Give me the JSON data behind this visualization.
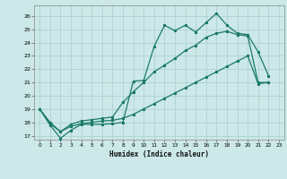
{
  "xlabel": "Humidex (Indice chaleur)",
  "bg_color": "#cce8e8",
  "grid_color": "#aacece",
  "line_color": "#1a7a6a",
  "xlim": [
    -0.5,
    23.5
  ],
  "ylim": [
    16.7,
    26.8
  ],
  "yticks": [
    17,
    18,
    19,
    20,
    21,
    22,
    23,
    24,
    25,
    26
  ],
  "xticks": [
    0,
    1,
    2,
    3,
    4,
    5,
    6,
    7,
    8,
    9,
    10,
    11,
    12,
    13,
    14,
    15,
    16,
    17,
    18,
    19,
    20,
    21,
    22,
    23
  ],
  "line1_x": [
    0,
    1,
    2,
    3,
    4,
    5,
    6,
    7,
    8,
    9,
    10,
    11,
    12,
    13,
    14,
    15,
    16,
    17,
    18,
    19,
    20,
    21,
    22
  ],
  "line1_y": [
    19.0,
    17.8,
    16.8,
    17.4,
    17.85,
    17.85,
    17.85,
    17.9,
    18.0,
    21.1,
    21.15,
    23.7,
    25.3,
    24.9,
    25.3,
    24.8,
    25.5,
    26.2,
    25.3,
    24.7,
    24.6,
    23.3,
    21.5
  ],
  "line2_x": [
    0,
    1,
    2,
    3,
    4,
    5,
    6,
    7,
    8,
    9,
    10,
    11,
    12,
    13,
    14,
    15,
    16,
    17,
    18,
    19,
    20,
    21,
    22
  ],
  "line2_y": [
    19.0,
    17.9,
    17.3,
    17.85,
    18.1,
    18.2,
    18.3,
    18.4,
    19.5,
    20.3,
    21.0,
    21.8,
    22.3,
    22.8,
    23.4,
    23.8,
    24.4,
    24.7,
    24.85,
    24.6,
    24.5,
    21.0,
    21.0
  ],
  "line3_x": [
    0,
    1,
    2,
    3,
    4,
    5,
    6,
    7,
    8,
    9,
    10,
    11,
    12,
    13,
    14,
    15,
    16,
    17,
    18,
    19,
    20,
    21,
    22
  ],
  "line3_y": [
    19.0,
    18.0,
    17.3,
    17.7,
    17.9,
    18.0,
    18.1,
    18.15,
    18.3,
    18.6,
    19.0,
    19.4,
    19.8,
    20.2,
    20.6,
    21.0,
    21.4,
    21.8,
    22.2,
    22.6,
    23.0,
    20.9,
    21.0
  ]
}
